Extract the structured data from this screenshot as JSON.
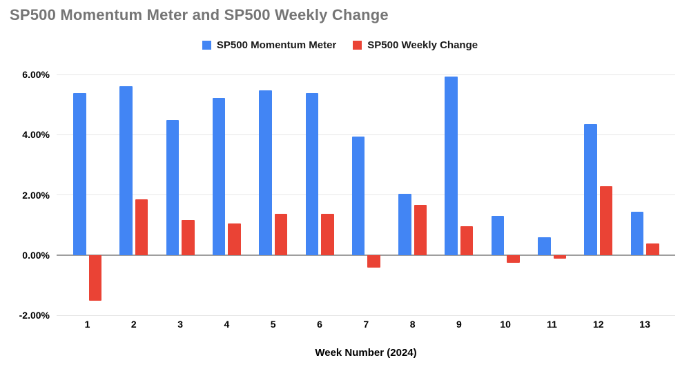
{
  "title": "SP500 Momentum Meter and SP500 Weekly Change",
  "chart_data": {
    "type": "bar",
    "title": "SP500 Momentum Meter and SP500 Weekly Change",
    "xlabel": "Week Number (2024)",
    "ylabel": "",
    "categories": [
      "1",
      "2",
      "3",
      "4",
      "5",
      "6",
      "7",
      "8",
      "9",
      "10",
      "11",
      "12",
      "13"
    ],
    "series": [
      {
        "name": "SP500 Momentum Meter",
        "color": "#4285F4",
        "values": [
          5.38,
          5.61,
          4.48,
          5.21,
          5.48,
          5.37,
          3.93,
          2.03,
          5.93,
          1.31,
          0.59,
          4.34,
          1.44
        ]
      },
      {
        "name": "SP500 Weekly Change",
        "color": "#EA4335",
        "values": [
          -1.52,
          1.84,
          1.17,
          1.06,
          1.38,
          1.37,
          -0.42,
          1.66,
          0.95,
          -0.26,
          -0.13,
          2.29,
          0.39
        ]
      }
    ],
    "ylim": [
      -2,
      6
    ],
    "yticks": [
      6,
      4,
      2,
      0,
      -2
    ],
    "ytick_labels": [
      "6.00%",
      "4.00%",
      "2.00%",
      "0.00%",
      "-2.00%"
    ],
    "grid": true,
    "legend_position": "top"
  },
  "colors": {
    "momentum": "#4285F4",
    "weekly_change": "#EA4335",
    "title_text": "#757575",
    "gridline": "#e6e6e6",
    "zero_line": "#9e9e9e",
    "axis_text": "#000000"
  }
}
